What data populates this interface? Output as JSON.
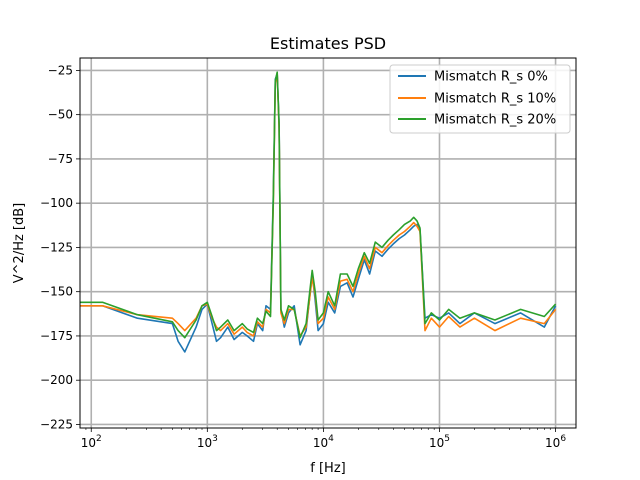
{
  "chart_data": {
    "type": "line",
    "title": "Estimates PSD",
    "xlabel": "f [Hz]",
    "ylabel": "V^2/Hz [dB]",
    "xscale": "log",
    "xlim": [
      80,
      1500000
    ],
    "ylim": [
      -227,
      -18
    ],
    "grid": true,
    "legend_position": "top-right",
    "x_ticks": [
      {
        "value": 100,
        "base": "10",
        "exp": "2"
      },
      {
        "value": 1000,
        "base": "10",
        "exp": "3"
      },
      {
        "value": 10000,
        "base": "10",
        "exp": "4"
      },
      {
        "value": 100000,
        "base": "10",
        "exp": "5"
      },
      {
        "value": 1000000,
        "base": "10",
        "exp": "6"
      }
    ],
    "y_ticks": [
      {
        "value": -25,
        "label": "−25"
      },
      {
        "value": -50,
        "label": "−50"
      },
      {
        "value": -75,
        "label": "−75"
      },
      {
        "value": -100,
        "label": "−100"
      },
      {
        "value": -125,
        "label": "−125"
      },
      {
        "value": -150,
        "label": "−150"
      },
      {
        "value": -175,
        "label": "−175"
      },
      {
        "value": -200,
        "label": "−200"
      },
      {
        "value": -225,
        "label": "−225"
      }
    ],
    "series": [
      {
        "name": "Mismatch R_s 0%",
        "color": "#1f77b4",
        "x": [
          80,
          125,
          250,
          500,
          560,
          640,
          800,
          900,
          1000,
          1100,
          1200,
          1300,
          1500,
          1700,
          2000,
          2200,
          2500,
          2700,
          3000,
          3200,
          3500,
          3700,
          3850,
          4000,
          4150,
          4300,
          4600,
          5000,
          5600,
          6300,
          7100,
          8000,
          8500,
          9000,
          10000,
          11000,
          12500,
          14000,
          16000,
          18000,
          20000,
          22500,
          25000,
          28000,
          32000,
          36000,
          40000,
          45000,
          50000,
          56000,
          60000,
          64000,
          68000,
          75000,
          85000,
          100000,
          120000,
          150000,
          200000,
          300000,
          500000,
          800000,
          1000000
        ],
        "y": [
          -158,
          -158,
          -165,
          -168,
          -178,
          -184,
          -170,
          -160,
          -157,
          -168,
          -178,
          -176,
          -170,
          -177,
          -173,
          -175,
          -178,
          -168,
          -172,
          -158,
          -160,
          -95,
          -30,
          -27,
          -55,
          -160,
          -170,
          -162,
          -158,
          -180,
          -172,
          -140,
          -155,
          -172,
          -168,
          -156,
          -162,
          -147,
          -145,
          -153,
          -143,
          -132,
          -140,
          -127,
          -130,
          -126,
          -123,
          -120,
          -118,
          -115,
          -113,
          -112,
          -115,
          -165,
          -163,
          -165,
          -162,
          -168,
          -162,
          -168,
          -162,
          -170,
          -158
        ]
      },
      {
        "name": "Mismatch R_s 10%",
        "color": "#ff7f0e",
        "x": [
          80,
          125,
          250,
          500,
          560,
          640,
          800,
          900,
          1000,
          1100,
          1200,
          1300,
          1500,
          1700,
          2000,
          2200,
          2500,
          2700,
          3000,
          3200,
          3500,
          3700,
          3850,
          4000,
          4150,
          4300,
          4600,
          5000,
          5600,
          6300,
          7100,
          8000,
          8500,
          9000,
          10000,
          11000,
          12500,
          14000,
          16000,
          18000,
          20000,
          22500,
          25000,
          28000,
          32000,
          36000,
          40000,
          45000,
          50000,
          56000,
          60000,
          64000,
          68000,
          75000,
          85000,
          100000,
          120000,
          150000,
          200000,
          300000,
          500000,
          800000,
          1000000
        ],
        "y": [
          -158,
          -158,
          -163,
          -165,
          -168,
          -172,
          -165,
          -158,
          -157,
          -165,
          -170,
          -172,
          -168,
          -174,
          -170,
          -173,
          -175,
          -167,
          -170,
          -160,
          -162,
          -100,
          -32,
          -27,
          -58,
          -162,
          -168,
          -160,
          -160,
          -175,
          -170,
          -142,
          -152,
          -168,
          -165,
          -153,
          -160,
          -144,
          -143,
          -150,
          -140,
          -130,
          -137,
          -125,
          -128,
          -124,
          -121,
          -118,
          -116,
          -113,
          -111,
          -113,
          -116,
          -172,
          -165,
          -170,
          -164,
          -170,
          -165,
          -172,
          -165,
          -168,
          -160
        ]
      },
      {
        "name": "Mismatch R_s 20%",
        "color": "#2ca02c",
        "x": [
          80,
          125,
          250,
          500,
          560,
          640,
          800,
          900,
          1000,
          1100,
          1200,
          1300,
          1500,
          1700,
          2000,
          2200,
          2500,
          2700,
          3000,
          3200,
          3500,
          3700,
          3850,
          4000,
          4150,
          4300,
          4600,
          5000,
          5600,
          6300,
          7100,
          8000,
          8500,
          9000,
          10000,
          11000,
          12500,
          14000,
          16000,
          18000,
          20000,
          22500,
          25000,
          28000,
          32000,
          36000,
          40000,
          45000,
          50000,
          56000,
          60000,
          64000,
          68000,
          75000,
          85000,
          100000,
          120000,
          150000,
          200000,
          300000,
          500000,
          800000,
          1000000
        ],
        "y": [
          -156,
          -156,
          -163,
          -167,
          -172,
          -176,
          -166,
          -158,
          -156,
          -164,
          -172,
          -170,
          -166,
          -172,
          -168,
          -171,
          -173,
          -165,
          -168,
          -161,
          -164,
          -98,
          -31,
          -26,
          -56,
          -160,
          -166,
          -158,
          -160,
          -176,
          -168,
          -138,
          -150,
          -166,
          -162,
          -150,
          -158,
          -140,
          -140,
          -147,
          -137,
          -128,
          -134,
          -122,
          -125,
          -121,
          -118,
          -115,
          -112,
          -110,
          -108,
          -110,
          -114,
          -168,
          -162,
          -166,
          -160,
          -165,
          -162,
          -166,
          -160,
          -164,
          -157
        ]
      }
    ]
  }
}
